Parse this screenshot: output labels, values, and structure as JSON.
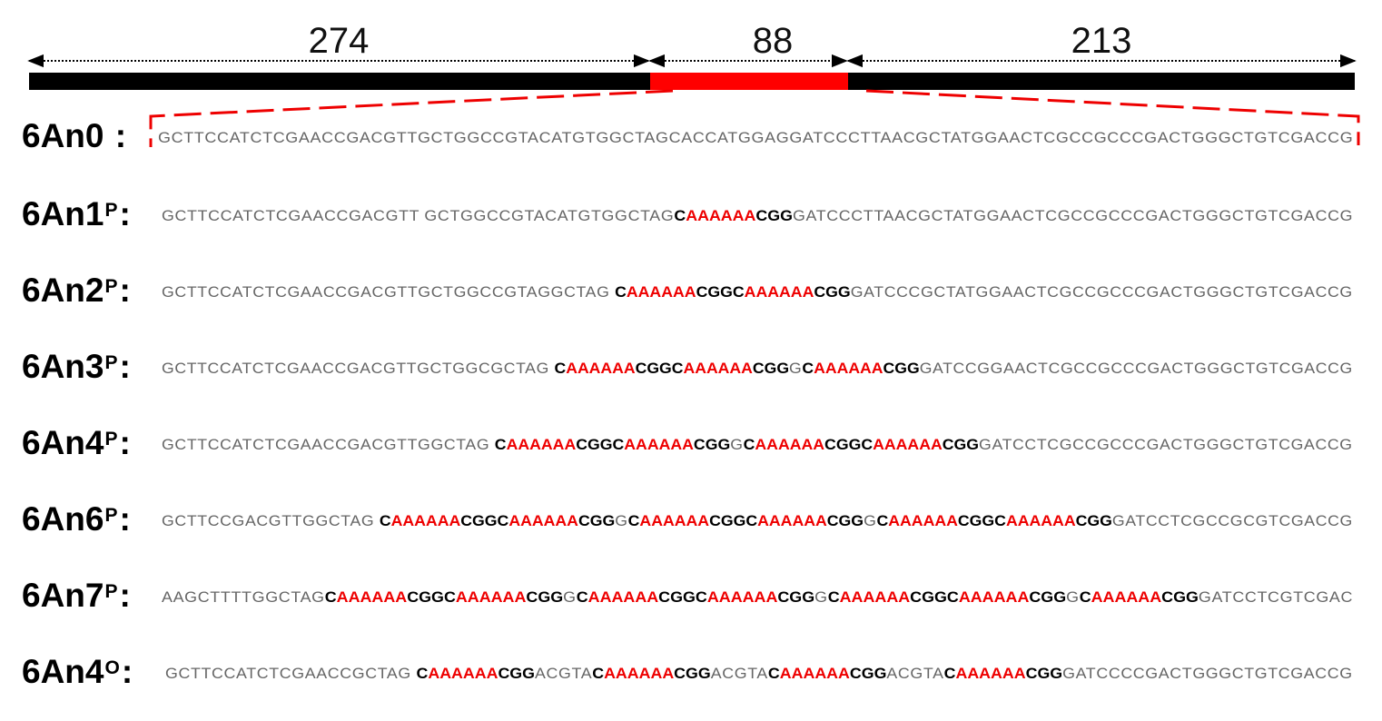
{
  "top_bar": {
    "segments": [
      {
        "label": "274",
        "length": 274,
        "color": "#000000"
      },
      {
        "label": "88",
        "length": 88,
        "color": "#ff0000"
      },
      {
        "label": "213",
        "length": 213,
        "color": "#000000"
      }
    ]
  },
  "colors": {
    "highlight": "#ee0000",
    "plain": "#666666",
    "bold": "#000000"
  },
  "rows": [
    {
      "name": "6An0",
      "sup": "",
      "sep": " :",
      "seq": [
        {
          "t": "GCTTCCATCTCGAACCGACGTTGCTGGCCGTACATGTGGCTAGCACCATGGAGGATCCCTTAACGCTATGGAACTCGCCGCCCGACTGGGCTGTCGACCG",
          "s": "plain"
        }
      ]
    },
    {
      "name": "6An1",
      "sup": "P",
      "sep": ":",
      "seq": [
        {
          "t": "GCTTCCATCTCGAACCGACGTT GCTGGCCGTACATGTGGCTAG",
          "s": "plain"
        },
        {
          "t": "C",
          "s": "black"
        },
        {
          "t": "AAAAAA",
          "s": "red"
        },
        {
          "t": "CGG",
          "s": "black"
        },
        {
          "t": "GATCCCTTAACGCTATGGAACTCGCCGCCCGACTGGGCTGTCGACCG",
          "s": "plain"
        }
      ]
    },
    {
      "name": "6An2",
      "sup": "P",
      "sep": ":",
      "seq": [
        {
          "t": "GCTTCCATCTCGAACCGACGTTGCTGGCCGTAGGCTAG ",
          "s": "plain"
        },
        {
          "t": "C",
          "s": "black"
        },
        {
          "t": "AAAAAA",
          "s": "red"
        },
        {
          "t": "CGGC",
          "s": "black"
        },
        {
          "t": "AAAAAA",
          "s": "red"
        },
        {
          "t": "CGG",
          "s": "black"
        },
        {
          "t": "GATCCCGCTATGGAACTCGCCGCCCGACTGGGCTGTCGACCG",
          "s": "plain"
        }
      ]
    },
    {
      "name": "6An3",
      "sup": "P",
      "sep": ":",
      "seq": [
        {
          "t": "GCTTCCATCTCGAACCGACGTTGCTGGCGCTAG ",
          "s": "plain"
        },
        {
          "t": "C",
          "s": "black"
        },
        {
          "t": "AAAAAA",
          "s": "red"
        },
        {
          "t": "CGGC",
          "s": "black"
        },
        {
          "t": "AAAAAA",
          "s": "red"
        },
        {
          "t": "CGG",
          "s": "black"
        },
        {
          "t": "G",
          "s": "plain"
        },
        {
          "t": "C",
          "s": "black"
        },
        {
          "t": "AAAAAA",
          "s": "red"
        },
        {
          "t": "CGG",
          "s": "black"
        },
        {
          "t": "GATCCGGAACTCGCCGCCCGACTGGGCTGTCGACCG",
          "s": "plain"
        }
      ]
    },
    {
      "name": "6An4",
      "sup": "P",
      "sep": ":",
      "seq": [
        {
          "t": "GCTTCCATCTCGAACCGACGTTGGCTAG ",
          "s": "plain"
        },
        {
          "t": "C",
          "s": "black"
        },
        {
          "t": "AAAAAA",
          "s": "red"
        },
        {
          "t": "CGGC",
          "s": "black"
        },
        {
          "t": "AAAAAA",
          "s": "red"
        },
        {
          "t": "CGG",
          "s": "black"
        },
        {
          "t": "G",
          "s": "plain"
        },
        {
          "t": "C",
          "s": "black"
        },
        {
          "t": "AAAAAA",
          "s": "red"
        },
        {
          "t": "CGGC",
          "s": "black"
        },
        {
          "t": "AAAAAA",
          "s": "red"
        },
        {
          "t": "CGG",
          "s": "black"
        },
        {
          "t": "GATCCTCGCCGCCCGACTGGGCTGTCGACCG",
          "s": "plain"
        }
      ]
    },
    {
      "name": "6An6",
      "sup": "P",
      "sep": ":",
      "seq": [
        {
          "t": "GCTTCCGACGTTGGCTAG ",
          "s": "plain"
        },
        {
          "t": "C",
          "s": "black"
        },
        {
          "t": "AAAAAA",
          "s": "red"
        },
        {
          "t": "CGGC",
          "s": "black"
        },
        {
          "t": "AAAAAA",
          "s": "red"
        },
        {
          "t": "CGG",
          "s": "black"
        },
        {
          "t": "G",
          "s": "plain"
        },
        {
          "t": "C",
          "s": "black"
        },
        {
          "t": "AAAAAA",
          "s": "red"
        },
        {
          "t": "CGGC",
          "s": "black"
        },
        {
          "t": "AAAAAA",
          "s": "red"
        },
        {
          "t": "CGG",
          "s": "black"
        },
        {
          "t": "G",
          "s": "plain"
        },
        {
          "t": "C",
          "s": "black"
        },
        {
          "t": "AAAAAA",
          "s": "red"
        },
        {
          "t": "CGGC",
          "s": "black"
        },
        {
          "t": "AAAAAA",
          "s": "red"
        },
        {
          "t": "CGG",
          "s": "black"
        },
        {
          "t": "GATCCTCGCCGCGTCGACCG",
          "s": "plain"
        }
      ]
    },
    {
      "name": "6An7",
      "sup": "P",
      "sep": ":",
      "seq": [
        {
          "t": "AAGCTTTTGGCTAG",
          "s": "plain"
        },
        {
          "t": "C",
          "s": "black"
        },
        {
          "t": "AAAAAA",
          "s": "red"
        },
        {
          "t": "CGGC",
          "s": "black"
        },
        {
          "t": "AAAAAA",
          "s": "red"
        },
        {
          "t": "CGG",
          "s": "black"
        },
        {
          "t": "G",
          "s": "plain"
        },
        {
          "t": "C",
          "s": "black"
        },
        {
          "t": "AAAAAA",
          "s": "red"
        },
        {
          "t": "CGGC",
          "s": "black"
        },
        {
          "t": "AAAAAA",
          "s": "red"
        },
        {
          "t": "CGG",
          "s": "black"
        },
        {
          "t": "G",
          "s": "plain"
        },
        {
          "t": "C",
          "s": "black"
        },
        {
          "t": "AAAAAA",
          "s": "red"
        },
        {
          "t": "CGGC",
          "s": "black"
        },
        {
          "t": "AAAAAA",
          "s": "red"
        },
        {
          "t": "CGG",
          "s": "black"
        },
        {
          "t": "G",
          "s": "plain"
        },
        {
          "t": "C",
          "s": "black"
        },
        {
          "t": "AAAAAA",
          "s": "red"
        },
        {
          "t": "CGG",
          "s": "black"
        },
        {
          "t": "GATCCTCGTCGAC",
          "s": "plain"
        }
      ]
    },
    {
      "name": "6An4",
      "sup": "O",
      "sep": ":",
      "seq": [
        {
          "t": "GCTTCCATCTCGAACCGCTAG ",
          "s": "plain"
        },
        {
          "t": "C",
          "s": "black"
        },
        {
          "t": "AAAAAA",
          "s": "red"
        },
        {
          "t": "CGG",
          "s": "black"
        },
        {
          "t": "ACGTA",
          "s": "plain"
        },
        {
          "t": "C",
          "s": "black"
        },
        {
          "t": "AAAAAA",
          "s": "red"
        },
        {
          "t": "CGG",
          "s": "black"
        },
        {
          "t": "ACGTA",
          "s": "plain"
        },
        {
          "t": "C",
          "s": "black"
        },
        {
          "t": "AAAAAA",
          "s": "red"
        },
        {
          "t": "CGG",
          "s": "black"
        },
        {
          "t": "ACGTA",
          "s": "plain"
        },
        {
          "t": "C",
          "s": "black"
        },
        {
          "t": "AAAAAA",
          "s": "red"
        },
        {
          "t": "CGG",
          "s": "black"
        },
        {
          "t": "GATCCCCGACTGGGCTGTCGACCG",
          "s": "plain"
        }
      ]
    }
  ]
}
